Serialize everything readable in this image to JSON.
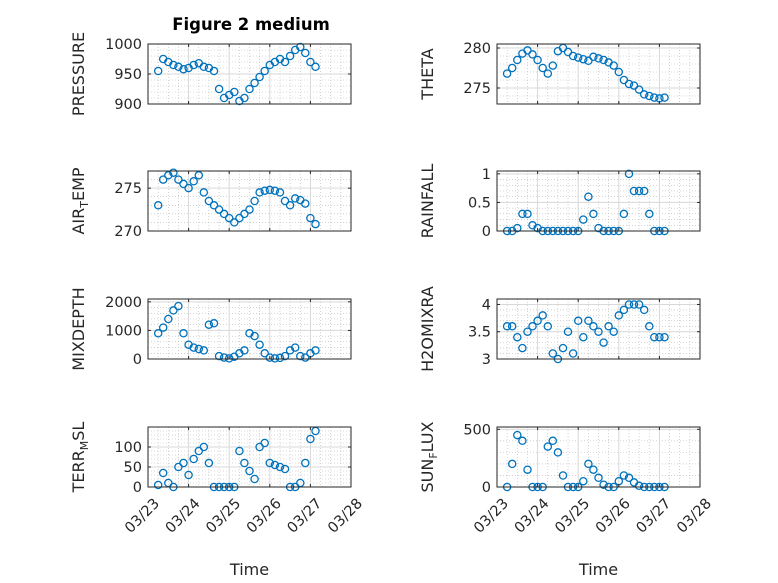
{
  "figure_title": "Figure 2 medium",
  "colors": {
    "marker": "#0072BD",
    "axes": "#262626"
  },
  "chart_data": [
    {
      "type": "scatter",
      "id": "pressure",
      "marker": "o",
      "ylabel": "PRESSURE",
      "ylim": [
        900,
        1000
      ],
      "yticks": [
        900,
        950,
        1000
      ],
      "xlabel": "",
      "xlim": [
        "03/23",
        "03/28"
      ],
      "xtick_labels": [
        "03/23",
        "03/24",
        "03/25",
        "03/26",
        "03/27",
        "03/28"
      ],
      "grid": true,
      "minor_grid": true,
      "x": [
        "03/23 06:00",
        "03/23 09:00",
        "03/23 12:00",
        "03/23 15:00",
        "03/23 18:00",
        "03/23 21:00",
        "03/24 00:00",
        "03/24 03:00",
        "03/24 06:00",
        "03/24 09:00",
        "03/24 12:00",
        "03/24 15:00",
        "03/24 18:00",
        "03/24 21:00",
        "03/25 00:00",
        "03/25 03:00",
        "03/25 06:00",
        "03/25 09:00",
        "03/25 12:00",
        "03/25 15:00",
        "03/25 18:00",
        "03/25 21:00",
        "03/26 00:00",
        "03/26 03:00",
        "03/26 06:00",
        "03/26 09:00",
        "03/26 12:00",
        "03/26 15:00",
        "03/26 18:00",
        "03/26 21:00",
        "03/27 00:00",
        "03/27 03:00"
      ],
      "y": [
        955,
        975,
        970,
        965,
        962,
        958,
        960,
        965,
        968,
        962,
        960,
        955,
        925,
        910,
        915,
        920,
        905,
        910,
        925,
        935,
        945,
        955,
        965,
        970,
        975,
        970,
        980,
        990,
        995,
        985,
        970,
        962
      ]
    },
    {
      "type": "scatter",
      "id": "theta",
      "marker": "o",
      "ylabel": "THETA",
      "ylim": [
        273,
        280.5
      ],
      "yticks": [
        275,
        280
      ],
      "xlabel": "",
      "xlim": [
        "03/23",
        "03/28"
      ],
      "xtick_labels": [
        "03/23",
        "03/24",
        "03/25",
        "03/26",
        "03/27",
        "03/28"
      ],
      "grid": true,
      "minor_grid": true,
      "x": [
        "03/23 06:00",
        "03/23 09:00",
        "03/23 12:00",
        "03/23 15:00",
        "03/23 18:00",
        "03/23 21:00",
        "03/24 00:00",
        "03/24 03:00",
        "03/24 06:00",
        "03/24 09:00",
        "03/24 12:00",
        "03/24 15:00",
        "03/24 18:00",
        "03/24 21:00",
        "03/25 00:00",
        "03/25 03:00",
        "03/25 06:00",
        "03/25 09:00",
        "03/25 12:00",
        "03/25 15:00",
        "03/25 18:00",
        "03/25 21:00",
        "03/26 00:00",
        "03/26 03:00",
        "03/26 06:00",
        "03/26 09:00",
        "03/26 12:00",
        "03/26 15:00",
        "03/26 18:00",
        "03/26 21:00",
        "03/27 00:00",
        "03/27 03:00"
      ],
      "y": [
        276.8,
        277.5,
        278.5,
        279.3,
        279.7,
        279.2,
        278.5,
        277.5,
        276.8,
        277.8,
        279.6,
        280.0,
        279.5,
        279.0,
        278.8,
        278.6,
        278.4,
        278.9,
        278.7,
        278.5,
        278.2,
        277.8,
        277.0,
        276.0,
        275.5,
        275.3,
        274.8,
        274.2,
        274.0,
        273.8,
        273.7,
        273.8
      ]
    },
    {
      "type": "scatter",
      "id": "air_temp",
      "marker": "o",
      "ylabel": "AIR_TEMP",
      "ylim": [
        270,
        277
      ],
      "yticks": [
        270,
        275
      ],
      "xlabel": "",
      "xlim": [
        "03/23",
        "03/28"
      ],
      "xtick_labels": [
        "03/23",
        "03/24",
        "03/25",
        "03/26",
        "03/27",
        "03/28"
      ],
      "grid": true,
      "minor_grid": true,
      "x": [
        "03/23 06:00",
        "03/23 09:00",
        "03/23 12:00",
        "03/23 15:00",
        "03/23 18:00",
        "03/23 21:00",
        "03/24 00:00",
        "03/24 03:00",
        "03/24 06:00",
        "03/24 09:00",
        "03/24 12:00",
        "03/24 15:00",
        "03/24 18:00",
        "03/24 21:00",
        "03/25 00:00",
        "03/25 03:00",
        "03/25 06:00",
        "03/25 09:00",
        "03/25 12:00",
        "03/25 15:00",
        "03/25 18:00",
        "03/25 21:00",
        "03/26 00:00",
        "03/26 03:00",
        "03/26 06:00",
        "03/26 09:00",
        "03/26 12:00",
        "03/26 15:00",
        "03/26 18:00",
        "03/26 21:00",
        "03/27 00:00",
        "03/27 03:00"
      ],
      "y": [
        273.0,
        276.0,
        276.5,
        276.8,
        276.0,
        275.5,
        275.0,
        275.8,
        276.5,
        274.5,
        273.5,
        273.0,
        272.5,
        272.0,
        271.5,
        271.0,
        271.5,
        272.0,
        272.5,
        273.5,
        274.5,
        274.7,
        274.8,
        274.7,
        274.5,
        273.5,
        273.0,
        273.8,
        273.6,
        273.2,
        271.5,
        270.8
      ]
    },
    {
      "type": "scatter",
      "id": "rainfall",
      "marker": "o",
      "ylabel": "RAINFALL",
      "ylim": [
        0,
        1.05
      ],
      "yticks": [
        0,
        0.5,
        1
      ],
      "xlabel": "",
      "xlim": [
        "03/23",
        "03/28"
      ],
      "xtick_labels": [
        "03/23",
        "03/24",
        "03/25",
        "03/26",
        "03/27",
        "03/28"
      ],
      "grid": true,
      "minor_grid": true,
      "x": [
        "03/23 06:00",
        "03/23 09:00",
        "03/23 12:00",
        "03/23 15:00",
        "03/23 18:00",
        "03/23 21:00",
        "03/24 00:00",
        "03/24 03:00",
        "03/24 06:00",
        "03/24 09:00",
        "03/24 12:00",
        "03/24 15:00",
        "03/24 18:00",
        "03/24 21:00",
        "03/25 00:00",
        "03/25 03:00",
        "03/25 06:00",
        "03/25 09:00",
        "03/25 12:00",
        "03/25 15:00",
        "03/25 18:00",
        "03/25 21:00",
        "03/26 00:00",
        "03/26 03:00",
        "03/26 06:00",
        "03/26 09:00",
        "03/26 12:00",
        "03/26 15:00",
        "03/26 18:00",
        "03/26 21:00",
        "03/27 00:00",
        "03/27 03:00"
      ],
      "y": [
        0,
        0,
        0.05,
        0.3,
        0.3,
        0.1,
        0.05,
        0,
        0,
        0,
        0,
        0,
        0,
        0,
        0,
        0.2,
        0.6,
        0.3,
        0.05,
        0,
        0,
        0,
        0,
        0.3,
        1.0,
        0.7,
        0.7,
        0.7,
        0.3,
        0,
        0,
        0
      ]
    },
    {
      "type": "scatter",
      "id": "mixdepth",
      "marker": "o",
      "ylabel": "MIXDEPTH",
      "ylim": [
        0,
        2100
      ],
      "yticks": [
        0,
        1000,
        2000
      ],
      "xlabel": "",
      "xlim": [
        "03/23",
        "03/28"
      ],
      "xtick_labels": [
        "03/23",
        "03/24",
        "03/25",
        "03/26",
        "03/27",
        "03/28"
      ],
      "grid": true,
      "minor_grid": true,
      "x": [
        "03/23 06:00",
        "03/23 09:00",
        "03/23 12:00",
        "03/23 15:00",
        "03/23 18:00",
        "03/23 21:00",
        "03/24 00:00",
        "03/24 03:00",
        "03/24 06:00",
        "03/24 09:00",
        "03/24 12:00",
        "03/24 15:00",
        "03/24 18:00",
        "03/24 21:00",
        "03/25 00:00",
        "03/25 03:00",
        "03/25 06:00",
        "03/25 09:00",
        "03/25 12:00",
        "03/25 15:00",
        "03/25 18:00",
        "03/25 21:00",
        "03/26 00:00",
        "03/26 03:00",
        "03/26 06:00",
        "03/26 09:00",
        "03/26 12:00",
        "03/26 15:00",
        "03/26 18:00",
        "03/26 21:00",
        "03/27 00:00",
        "03/27 03:00"
      ],
      "y": [
        900,
        1100,
        1400,
        1700,
        1850,
        900,
        500,
        400,
        350,
        300,
        1200,
        1250,
        100,
        50,
        20,
        80,
        200,
        300,
        900,
        800,
        500,
        200,
        50,
        20,
        40,
        100,
        300,
        400,
        100,
        50,
        200,
        300
      ]
    },
    {
      "type": "scatter",
      "id": "h2omixra",
      "marker": "o",
      "ylabel": "H2OMIXRA",
      "ylim": [
        3,
        4.1
      ],
      "yticks": [
        3,
        3.5,
        4
      ],
      "xlabel": "",
      "xlim": [
        "03/23",
        "03/28"
      ],
      "xtick_labels": [
        "03/23",
        "03/24",
        "03/25",
        "03/26",
        "03/27",
        "03/28"
      ],
      "grid": true,
      "minor_grid": true,
      "x": [
        "03/23 06:00",
        "03/23 09:00",
        "03/23 12:00",
        "03/23 15:00",
        "03/23 18:00",
        "03/23 21:00",
        "03/24 00:00",
        "03/24 03:00",
        "03/24 06:00",
        "03/24 09:00",
        "03/24 12:00",
        "03/24 15:00",
        "03/24 18:00",
        "03/24 21:00",
        "03/25 00:00",
        "03/25 03:00",
        "03/25 06:00",
        "03/25 09:00",
        "03/25 12:00",
        "03/25 15:00",
        "03/25 18:00",
        "03/25 21:00",
        "03/26 00:00",
        "03/26 03:00",
        "03/26 06:00",
        "03/26 09:00",
        "03/26 12:00",
        "03/26 15:00",
        "03/26 18:00",
        "03/26 21:00",
        "03/27 00:00",
        "03/27 03:00"
      ],
      "y": [
        3.6,
        3.6,
        3.4,
        3.2,
        3.5,
        3.6,
        3.7,
        3.8,
        3.6,
        3.1,
        3.0,
        3.2,
        3.5,
        3.1,
        3.7,
        3.4,
        3.7,
        3.6,
        3.5,
        3.3,
        3.6,
        3.5,
        3.8,
        3.9,
        4.0,
        4.0,
        4.0,
        3.9,
        3.6,
        3.4,
        3.4,
        3.4
      ]
    },
    {
      "type": "scatter",
      "id": "terr_msl",
      "marker": "o",
      "ylabel": "TERR_MSL",
      "ylim": [
        0,
        150
      ],
      "yticks": [
        0,
        50,
        100
      ],
      "xlabel": "Time",
      "xlim": [
        "03/23",
        "03/28"
      ],
      "xtick_labels": [
        "03/23",
        "03/24",
        "03/25",
        "03/26",
        "03/27",
        "03/28"
      ],
      "grid": true,
      "minor_grid": true,
      "x": [
        "03/23 06:00",
        "03/23 09:00",
        "03/23 12:00",
        "03/23 15:00",
        "03/23 18:00",
        "03/23 21:00",
        "03/24 00:00",
        "03/24 03:00",
        "03/24 06:00",
        "03/24 09:00",
        "03/24 12:00",
        "03/24 15:00",
        "03/24 18:00",
        "03/24 21:00",
        "03/25 00:00",
        "03/25 03:00",
        "03/25 06:00",
        "03/25 09:00",
        "03/25 12:00",
        "03/25 15:00",
        "03/25 18:00",
        "03/25 21:00",
        "03/26 00:00",
        "03/26 03:00",
        "03/26 06:00",
        "03/26 09:00",
        "03/26 12:00",
        "03/26 15:00",
        "03/26 18:00",
        "03/26 21:00",
        "03/27 00:00",
        "03/27 03:00"
      ],
      "y": [
        5,
        35,
        10,
        0,
        50,
        60,
        30,
        70,
        90,
        100,
        60,
        0,
        0,
        0,
        0,
        0,
        90,
        60,
        40,
        20,
        100,
        110,
        60,
        55,
        50,
        45,
        0,
        0,
        10,
        60,
        120,
        140
      ]
    },
    {
      "type": "scatter",
      "id": "sun_flux",
      "marker": "o",
      "ylabel": "SUN_FLUX",
      "ylim": [
        0,
        520
      ],
      "yticks": [
        0,
        500
      ],
      "xlabel": "Time",
      "xlim": [
        "03/23",
        "03/28"
      ],
      "xtick_labels": [
        "03/23",
        "03/24",
        "03/25",
        "03/26",
        "03/27",
        "03/28"
      ],
      "grid": true,
      "minor_grid": true,
      "x": [
        "03/23 06:00",
        "03/23 09:00",
        "03/23 12:00",
        "03/23 15:00",
        "03/23 18:00",
        "03/23 21:00",
        "03/24 00:00",
        "03/24 03:00",
        "03/24 06:00",
        "03/24 09:00",
        "03/24 12:00",
        "03/24 15:00",
        "03/24 18:00",
        "03/24 21:00",
        "03/25 00:00",
        "03/25 03:00",
        "03/25 06:00",
        "03/25 09:00",
        "03/25 12:00",
        "03/25 15:00",
        "03/25 18:00",
        "03/25 21:00",
        "03/26 00:00",
        "03/26 03:00",
        "03/26 06:00",
        "03/26 09:00",
        "03/26 12:00",
        "03/26 15:00",
        "03/26 18:00",
        "03/26 21:00",
        "03/27 00:00",
        "03/27 03:00"
      ],
      "y": [
        0,
        200,
        450,
        400,
        150,
        0,
        0,
        0,
        350,
        400,
        300,
        100,
        0,
        0,
        0,
        50,
        200,
        150,
        80,
        20,
        0,
        0,
        50,
        100,
        80,
        40,
        10,
        0,
        0,
        0,
        0,
        0
      ]
    }
  ]
}
